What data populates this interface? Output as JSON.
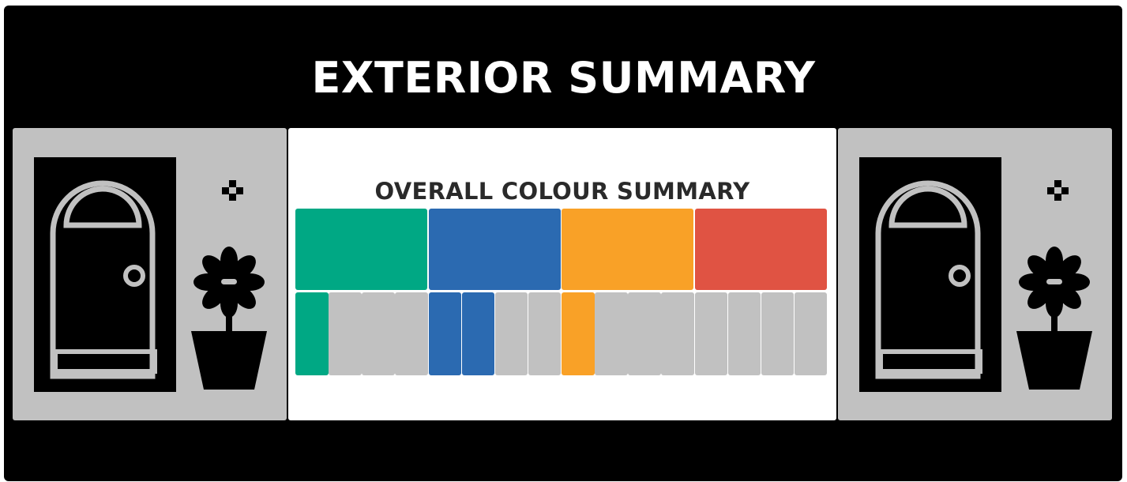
{
  "header": {
    "title": "EXTERIOR SUMMARY"
  },
  "summary": {
    "title": "OVERALL COLOUR SUMMARY",
    "inactive_color": "#c1c1c1",
    "groups": [
      {
        "color": "#00a884",
        "filled": 1,
        "total": 4
      },
      {
        "color": "#2b6ab1",
        "filled": 2,
        "total": 4
      },
      {
        "color": "#f9a127",
        "filled": 1,
        "total": 4
      },
      {
        "color": "#e05343",
        "filled": 0,
        "total": 4
      }
    ]
  },
  "decor": {
    "left_icons": [
      "door-icon",
      "sparkle-icon",
      "flower-pot-icon"
    ],
    "right_icons": [
      "door-icon",
      "sparkle-icon",
      "flower-pot-icon"
    ]
  }
}
